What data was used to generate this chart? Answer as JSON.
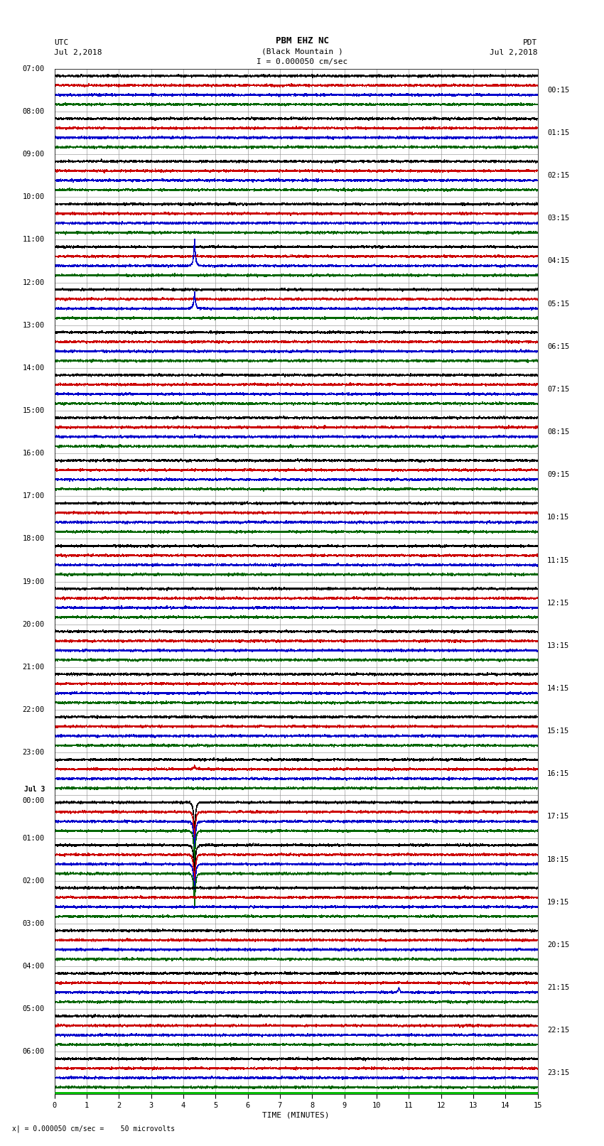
{
  "title_line1": "PBM EHZ NC",
  "title_line2": "(Black Mountain )",
  "scale_label": "I = 0.000050 cm/sec",
  "utc_label": "UTC\nJul 2,2018",
  "pdt_label": "PDT\nJul 2,2018",
  "bottom_label": "x| = 0.000050 cm/sec =    50 microvolts",
  "xlabel": "TIME (MINUTES)",
  "bg_color": "#ffffff",
  "plot_bg_color": "#ffffff",
  "grid_color": "#888888",
  "trace_colors": [
    "#000000",
    "#cc0000",
    "#0000cc",
    "#006600"
  ],
  "num_rows": 24,
  "minutes_per_row": 15,
  "left_time_labels": [
    "07:00",
    "08:00",
    "09:00",
    "10:00",
    "11:00",
    "12:00",
    "13:00",
    "14:00",
    "15:00",
    "16:00",
    "17:00",
    "18:00",
    "19:00",
    "20:00",
    "21:00",
    "22:00",
    "23:00",
    "Jul 3\n00:00",
    "01:00",
    "02:00",
    "03:00",
    "04:00",
    "05:00",
    "06:00"
  ],
  "right_time_labels": [
    "00:15",
    "01:15",
    "02:15",
    "03:15",
    "04:15",
    "05:15",
    "06:15",
    "07:15",
    "08:15",
    "09:15",
    "10:15",
    "11:15",
    "12:15",
    "13:15",
    "14:15",
    "15:15",
    "16:15",
    "17:15",
    "18:15",
    "19:15",
    "20:15",
    "21:15",
    "22:15",
    "23:15"
  ],
  "spikes": [
    {
      "row": 4,
      "minute": 4.35,
      "color_idx": 2,
      "amplitude": 2.8,
      "direction": 1
    },
    {
      "row": 5,
      "minute": 4.35,
      "color_idx": 2,
      "amplitude": 1.8,
      "direction": 1
    },
    {
      "row": 16,
      "minute": 4.35,
      "color_idx": 1,
      "amplitude": 0.4,
      "direction": 1
    },
    {
      "row": 17,
      "minute": 4.35,
      "color_idx": 0,
      "amplitude": 3.5,
      "direction": -1
    },
    {
      "row": 17,
      "minute": 4.35,
      "color_idx": 1,
      "amplitude": 3.5,
      "direction": -1
    },
    {
      "row": 17,
      "minute": 4.35,
      "color_idx": 2,
      "amplitude": 3.5,
      "direction": -1
    },
    {
      "row": 17,
      "minute": 4.35,
      "color_idx": 3,
      "amplitude": 3.5,
      "direction": -1
    },
    {
      "row": 18,
      "minute": 4.35,
      "color_idx": 0,
      "amplitude": 3.5,
      "direction": -1
    },
    {
      "row": 18,
      "minute": 4.35,
      "color_idx": 1,
      "amplitude": 3.5,
      "direction": -1
    },
    {
      "row": 18,
      "minute": 4.35,
      "color_idx": 2,
      "amplitude": 3.5,
      "direction": -1
    },
    {
      "row": 18,
      "minute": 4.35,
      "color_idx": 3,
      "amplitude": 3.5,
      "direction": -1
    },
    {
      "row": 21,
      "minute": 10.7,
      "color_idx": 2,
      "amplitude": 0.5,
      "direction": 1
    }
  ],
  "noise_scale": 0.018,
  "font_size_title": 9,
  "font_size_labels": 8,
  "font_size_ticks": 7.5
}
